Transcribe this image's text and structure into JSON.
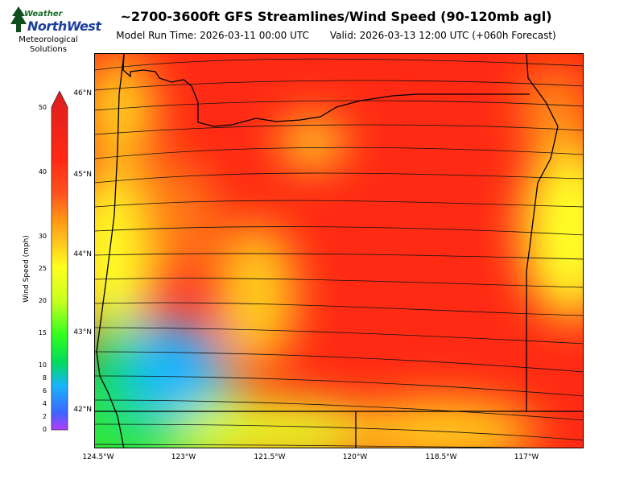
{
  "header": {
    "logo_weather": "Weather",
    "logo_northwest": "NorthWest",
    "logo_sub_1": "Meteorological",
    "logo_sub_2": "Solutions",
    "title": "~2700-3600ft GFS Streamlines/Wind Speed (90-120mb agl)",
    "model_run": "Model Run Time: 2026-03-11 00:00 UTC",
    "valid": "Valid: 2026-03-13 12:00 UTC  (+060h Forecast)"
  },
  "map": {
    "lat_labels": [
      "46°N",
      "45°N",
      "44°N",
      "43°N",
      "42°N"
    ],
    "lon_labels": [
      "124.5°W",
      "123°W",
      "121.5°W",
      "120°W",
      "118.5°W",
      "117°W"
    ]
  },
  "colorbar": {
    "label": "Wind Speed (mph)",
    "ticks": [
      "50",
      "40",
      "30",
      "25",
      "20",
      "15",
      "10",
      "8",
      "6",
      "4",
      "2",
      "0"
    ],
    "colors": [
      "#b43cff",
      "#3c64ff",
      "#18b4ff",
      "#00dc5a",
      "#32ff1e",
      "#c8ff1e",
      "#ffff1e",
      "#ffc81e",
      "#ff9614",
      "#ff501e",
      "#ff2814",
      "#dc1e1e"
    ]
  }
}
